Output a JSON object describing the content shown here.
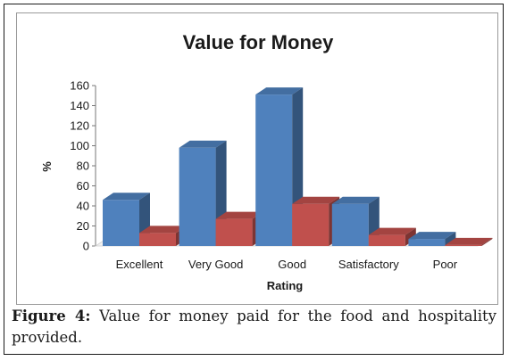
{
  "caption": {
    "label": "Figure 4:",
    "text": "Value for money paid for the food and hospitality provided."
  },
  "chart_data": {
    "type": "bar",
    "title": "Value for Money",
    "xlabel": "Rating",
    "ylabel": "%",
    "ylim": [
      0,
      160
    ],
    "yticks": [
      0,
      20,
      40,
      60,
      80,
      100,
      120,
      140,
      160
    ],
    "categories": [
      "Excellent",
      "Very Good",
      "Good",
      "Satisfactory",
      "Poor"
    ],
    "series": [
      {
        "color": "#4f81bd",
        "values": [
          46,
          98,
          151,
          42,
          7
        ]
      },
      {
        "color": "#c0504d",
        "values": [
          13,
          27,
          42,
          11,
          1
        ]
      }
    ],
    "grid": false,
    "legend": "none",
    "style": "3d-column"
  }
}
